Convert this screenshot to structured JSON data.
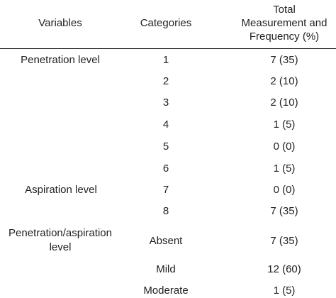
{
  "header": {
    "variables": "Variables",
    "categories": "Categories",
    "total_line1": "Total",
    "total_line2": "Measurement and",
    "total_line3": "Frequency (%)"
  },
  "rows": [
    {
      "variable": "Penetration level",
      "category": "1",
      "value": "7 (35)"
    },
    {
      "variable": "",
      "category": "2",
      "value": "2 (10)"
    },
    {
      "variable": "",
      "category": "3",
      "value": "2 (10)"
    },
    {
      "variable": "",
      "category": "4",
      "value": "1 (5)"
    },
    {
      "variable": "",
      "category": "5",
      "value": "0 (0)"
    },
    {
      "variable": "",
      "category": "6",
      "value": "1 (5)"
    },
    {
      "variable": "Aspiration level",
      "category": "7",
      "value": "0 (0)"
    },
    {
      "variable": "",
      "category": "8",
      "value": "7 (35)"
    },
    {
      "variable": "Penetration/aspiration",
      "variable_line2": "level",
      "category": "Absent",
      "value": "7 (35)"
    },
    {
      "variable": "",
      "category": "Mild",
      "value": "12 (60)"
    },
    {
      "variable": "",
      "category": "Moderate",
      "value": "1 (5)"
    }
  ]
}
